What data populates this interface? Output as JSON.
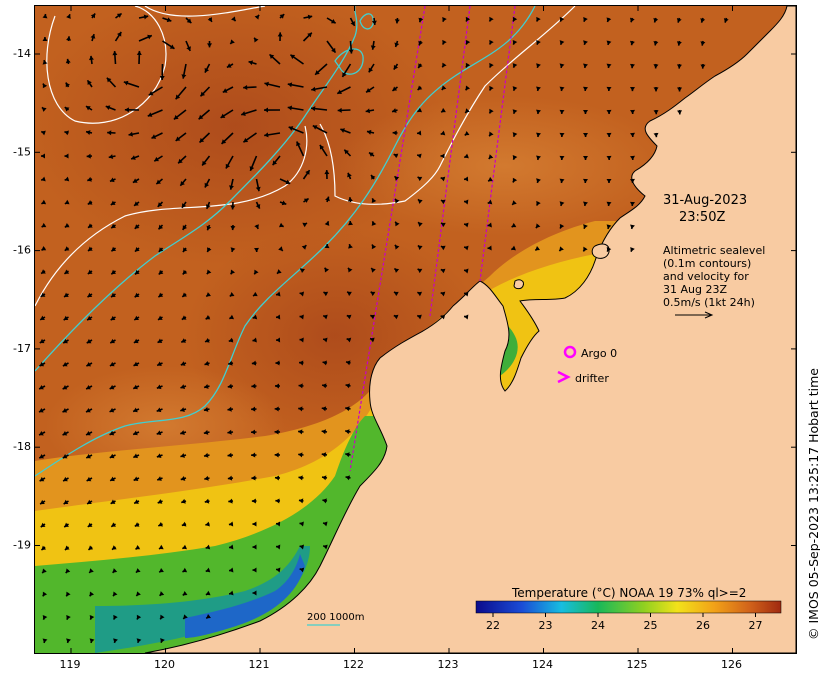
{
  "map": {
    "timestamp_date": "31-Aug-2023",
    "timestamp_time": "23:50Z",
    "altimetry_note": [
      "Altimetric sealevel",
      "(0.1m contours)",
      "and velocity for",
      "31 Aug 23Z",
      "0.5m/s (1kt 24h)"
    ],
    "legend_argo_label": "Argo 0",
    "legend_drifter_label": "drifter",
    "bathymetry_label": "200  1000m",
    "colorbar_title": "Temperature (°C) NOAA 19 73% ql>=2",
    "colorbar_ticks": [
      "22",
      "23",
      "24",
      "25",
      "26",
      "27"
    ],
    "x_ticks": [
      "119",
      "120",
      "121",
      "122",
      "123",
      "124",
      "125",
      "126"
    ],
    "y_ticks": [
      "-14",
      "-15",
      "-16",
      "-17",
      "-18",
      "-19"
    ],
    "credit": "© IMOS 05-Sep-2023 13:25:17 Hobart time",
    "colors": {
      "land": "#f8cba2",
      "sst_warm": "#b5501c",
      "sst_mid": "#f0c010",
      "sst_cool": "#2a9a3c",
      "contour_white": "#ffffff",
      "isobath_cyan": "#41cfd0",
      "track_magenta": "#c800c8"
    }
  }
}
